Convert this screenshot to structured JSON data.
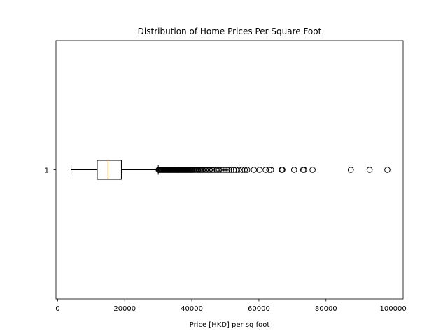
{
  "chart_data": {
    "type": "boxplot",
    "orientation": "horizontal",
    "title": "Distribution of Home Prices Per Square Foot",
    "xlabel": "Price [HKD] per sq foot",
    "ylabel": "",
    "xlim": [
      -500,
      103000
    ],
    "xticks": [
      0,
      20000,
      40000,
      60000,
      80000,
      100000
    ],
    "xtick_labels": [
      "0",
      "20000",
      "40000",
      "60000",
      "80000",
      "100000"
    ],
    "ytick_labels": [
      "1"
    ],
    "grid": false,
    "legend": "none",
    "colors": {
      "box": "#000000",
      "median": "#ff7f0e",
      "flier": "#000000"
    },
    "box": {
      "label": "1",
      "whisker_low": 4000,
      "q1": 11800,
      "median": 15000,
      "q3": 19000,
      "whisker_high": 30000
    },
    "fliers": [
      30100,
      30300,
      30500,
      30700,
      30900,
      31100,
      31300,
      31500,
      31700,
      31900,
      32100,
      32300,
      32500,
      32700,
      32900,
      33100,
      33300,
      33500,
      33700,
      33900,
      34100,
      34300,
      34500,
      34700,
      34900,
      35100,
      35300,
      35500,
      35700,
      35900,
      36100,
      36300,
      36500,
      36700,
      36900,
      37100,
      37300,
      37500,
      37700,
      37900,
      38100,
      38300,
      38500,
      38700,
      38900,
      39100,
      39300,
      39500,
      39700,
      39900,
      40100,
      40300,
      40600,
      40900,
      41200,
      41500,
      41800,
      42100,
      42400,
      42700,
      43000,
      43300,
      43700,
      44100,
      44500,
      44900,
      45300,
      45700,
      46100,
      46500,
      47000,
      47500,
      48100,
      48700,
      49300,
      49900,
      50500,
      51100,
      51800,
      52500,
      53200,
      54000,
      55000,
      55800,
      56500,
      58500,
      60200,
      62000,
      63100,
      63600,
      66800,
      67000,
      70500,
      73200,
      73500,
      76000,
      87400,
      93000,
      98300
    ]
  }
}
